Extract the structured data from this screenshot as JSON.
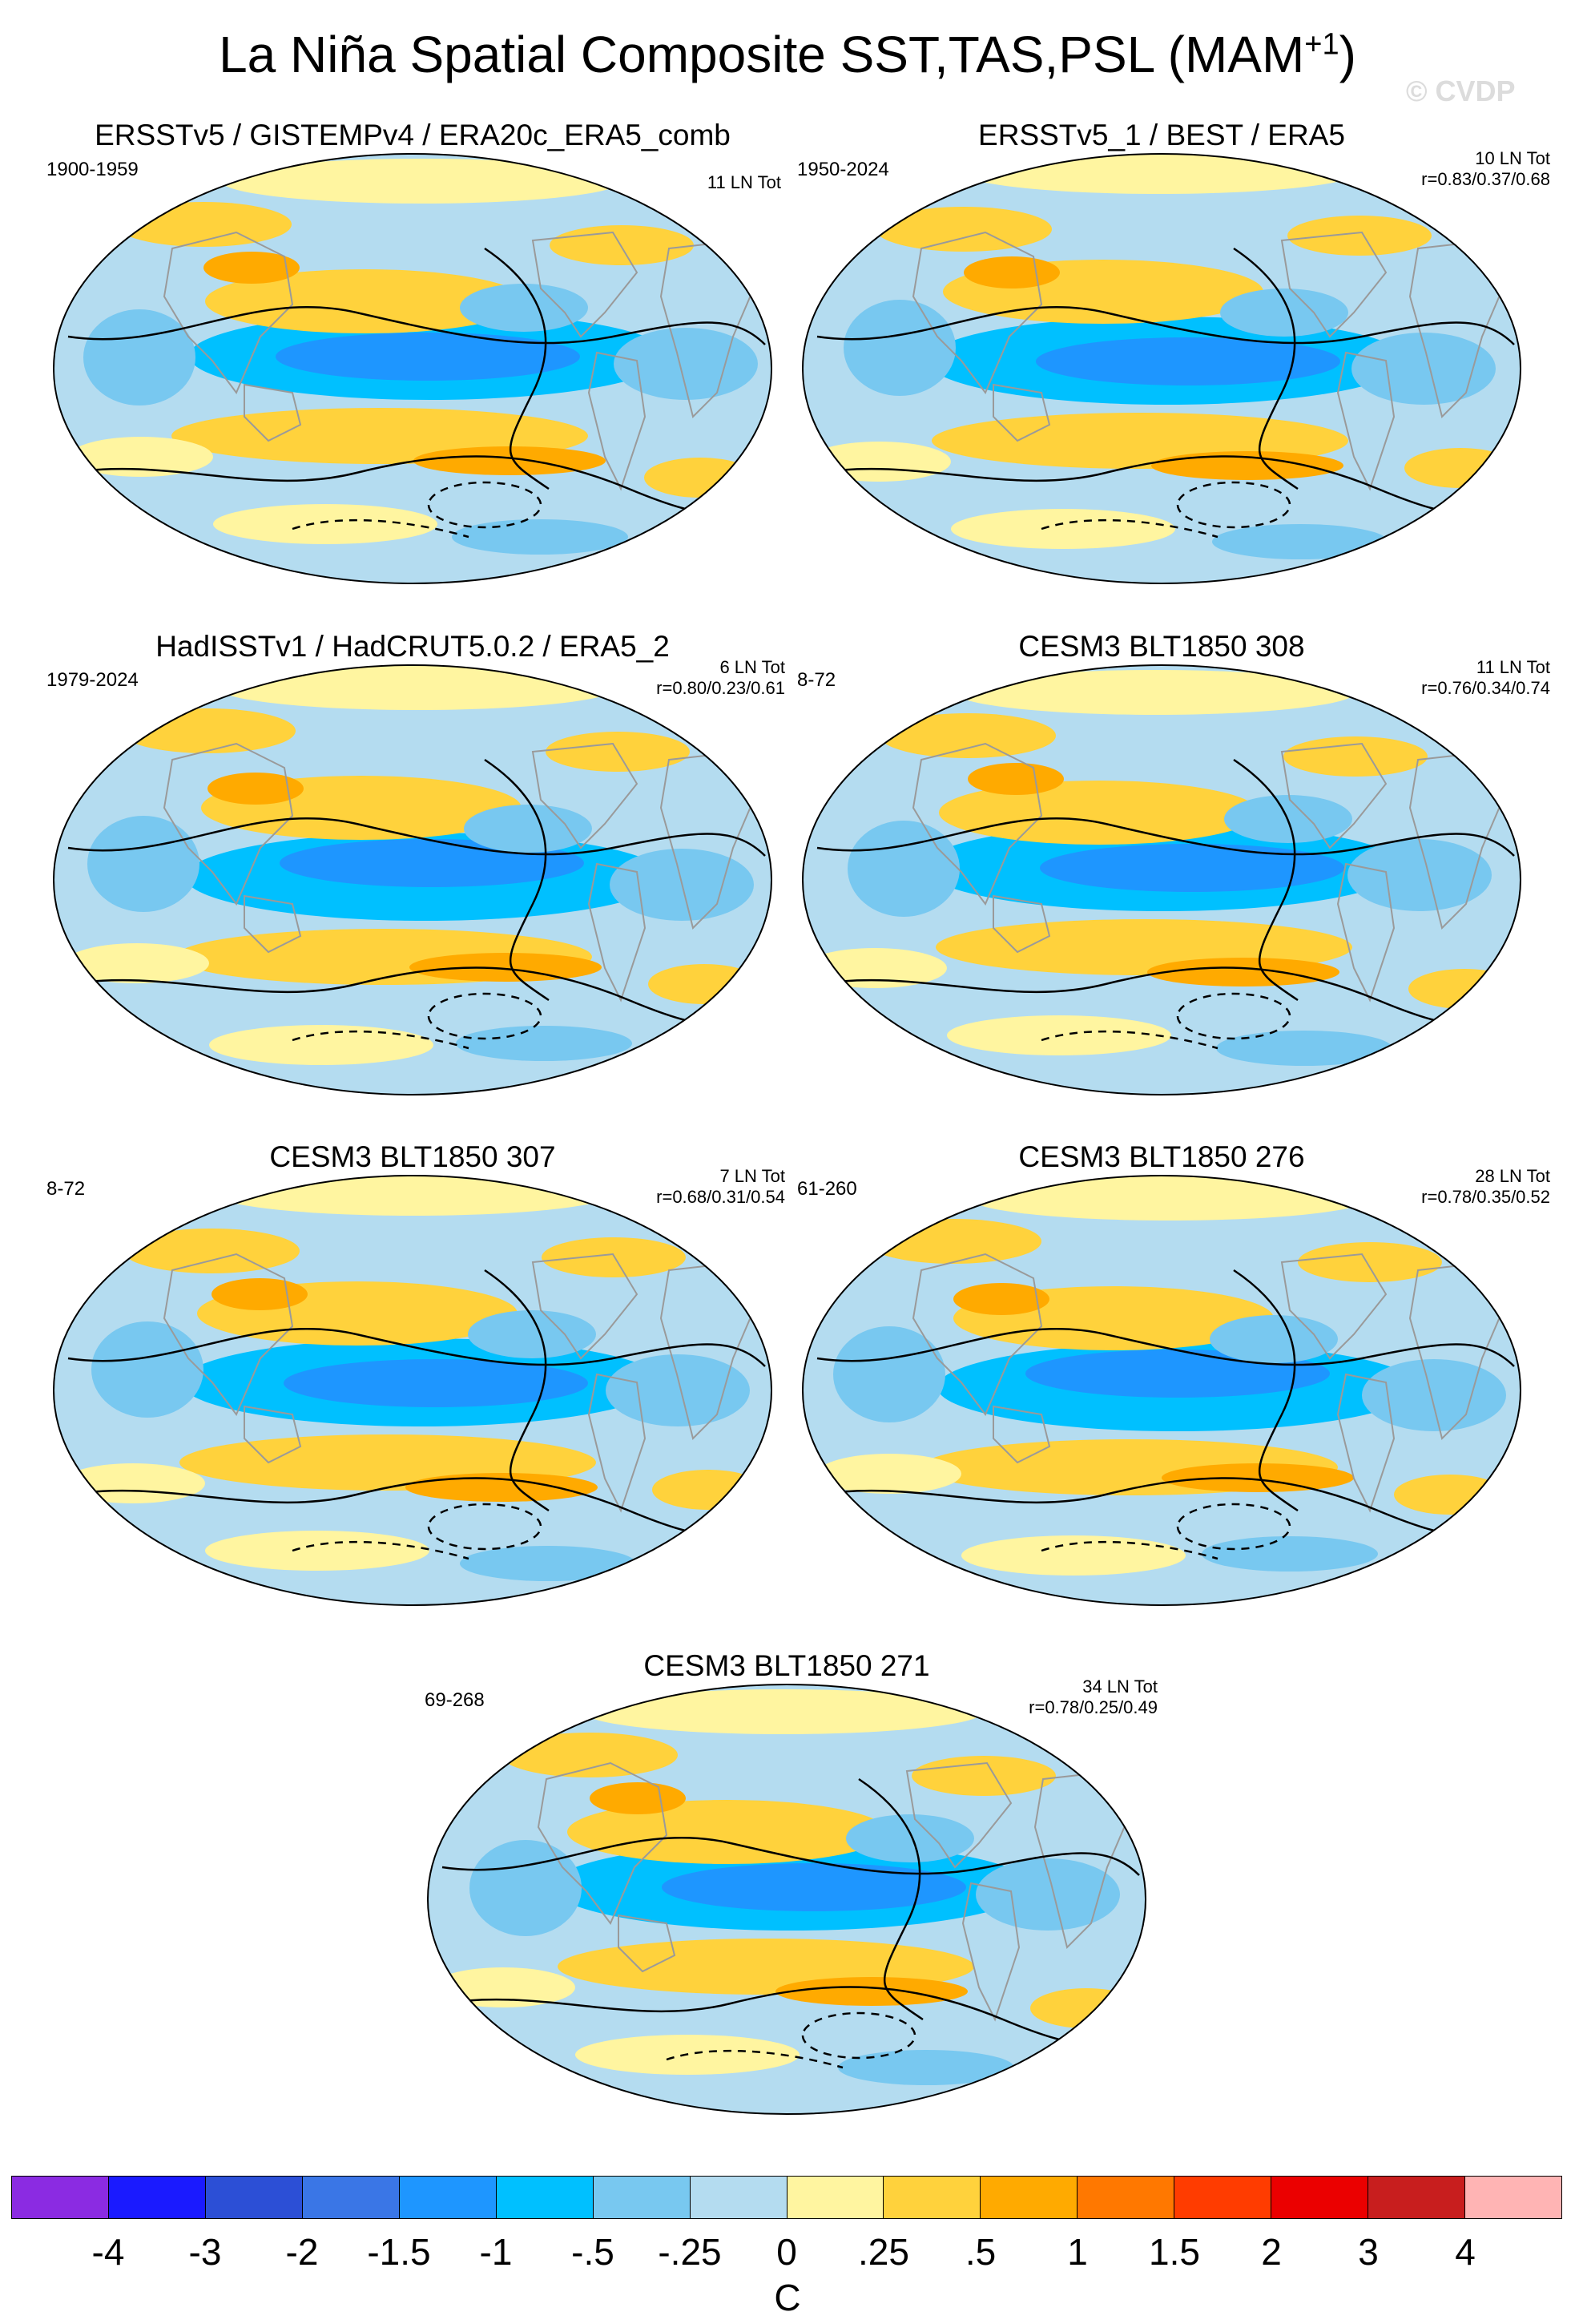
{
  "title": {
    "main": "La Niña Spatial Composite SST,TAS,PSL (MAM",
    "sup": "+1",
    "close": ")"
  },
  "watermark": "© CVDP",
  "panels": [
    {
      "title": "ERSSTv5 / GISTEMPv4 / ERA20c_ERA5_comb",
      "period": "1900-1959",
      "tot": "11 LN Tot",
      "r": ""
    },
    {
      "title": "ERSSTv5_1 / BEST / ERA5",
      "period": "1950-2024",
      "tot": "10 LN Tot",
      "r": "r=0.83/0.37/0.68"
    },
    {
      "title": "HadISSTv1 / HadCRUT5.0.2 / ERA5_2",
      "period": "1979-2024",
      "tot": "6 LN Tot",
      "r": "r=0.80/0.23/0.61"
    },
    {
      "title": "CESM3 BLT1850 308",
      "period": "8-72",
      "tot": "11 LN Tot",
      "r": "r=0.76/0.34/0.74"
    },
    {
      "title": "CESM3 BLT1850 307",
      "period": "8-72",
      "tot": "7 LN Tot",
      "r": "r=0.68/0.31/0.54"
    },
    {
      "title": "CESM3 BLT1850 276",
      "period": "61-260",
      "tot": "28 LN Tot",
      "r": "r=0.78/0.35/0.52"
    },
    {
      "title": "CESM3 BLT1850 271",
      "period": "69-268",
      "tot": "34 LN Tot",
      "r": "r=0.78/0.25/0.49"
    }
  ],
  "colorbar": {
    "unit": "C",
    "colors": [
      "#8b2be2",
      "#1a1aff",
      "#2c4fd6",
      "#3a76e6",
      "#1e96ff",
      "#00c0ff",
      "#78c8f0",
      "#b4dcf0",
      "#fff5a0",
      "#ffd23c",
      "#ffaa00",
      "#ff7800",
      "#ff3c00",
      "#eb0000",
      "#c81e1e",
      "#ffb4b4"
    ],
    "labels": [
      "-4",
      "-3",
      "-2",
      "-1.5",
      "-1",
      "-.5",
      "-.25",
      "0",
      ".25",
      ".5",
      "1",
      "1.5",
      "2",
      "3",
      "4"
    ]
  }
}
